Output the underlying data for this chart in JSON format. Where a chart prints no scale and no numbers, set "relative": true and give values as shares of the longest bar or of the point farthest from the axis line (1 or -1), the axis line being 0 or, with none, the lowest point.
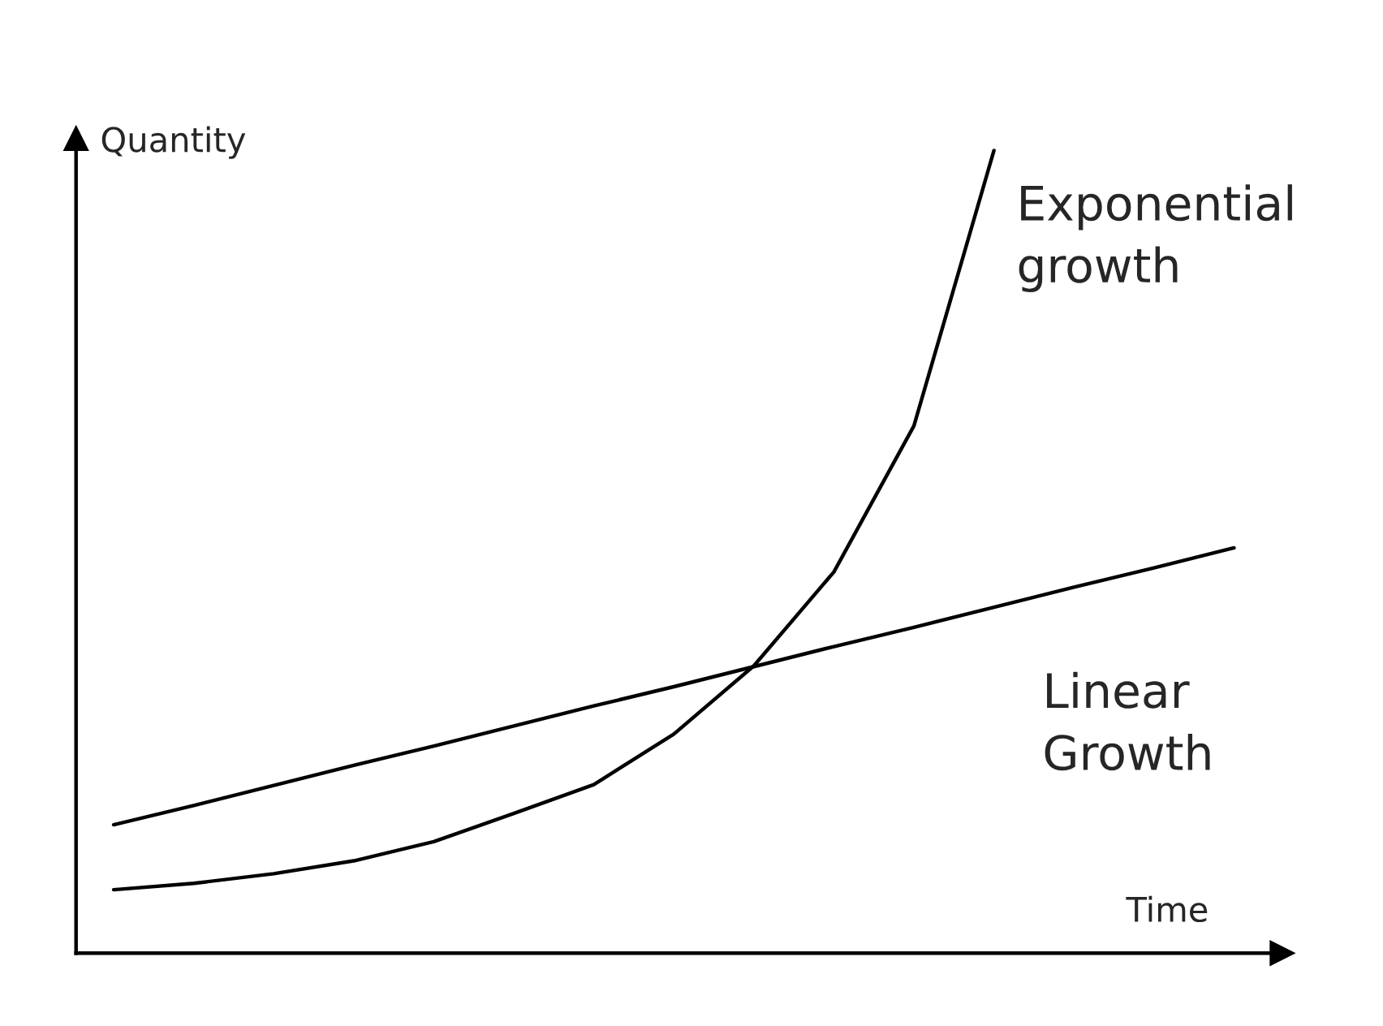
{
  "chart_data": {
    "type": "line",
    "relative": true,
    "xlabel": "Time",
    "ylabel": "Quantity",
    "marker": "none",
    "line_style": "solid",
    "categories": [
      null,
      null,
      null,
      null,
      null,
      null,
      null,
      null,
      null,
      null,
      null,
      null,
      null,
      null,
      null
    ],
    "series": [
      {
        "name": "Linear\nGrowth",
        "color": "#000000",
        "values": [
          0.16,
          0.184,
          0.209,
          0.234,
          0.258,
          0.283,
          0.308,
          0.332,
          0.357,
          0.382,
          0.406,
          0.431,
          0.456,
          0.48,
          0.505
        ]
      },
      {
        "name": "Exponential\ngrowth",
        "color": "#000000",
        "values": [
          0.079,
          0.087,
          0.099,
          0.115,
          0.139,
          0.174,
          0.21,
          0.273,
          0.358,
          0.475,
          0.657,
          1.0,
          null,
          null,
          null
        ]
      }
    ]
  }
}
